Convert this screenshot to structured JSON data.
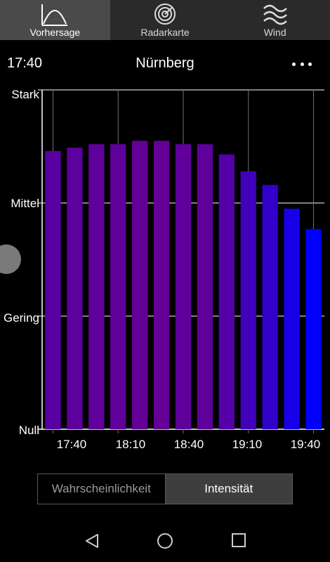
{
  "tabs": [
    {
      "label": "Vorhersage",
      "icon": "curve-icon",
      "active": true
    },
    {
      "label": "Radarkarte",
      "icon": "radar-icon",
      "active": false
    },
    {
      "label": "Wind",
      "icon": "waves-icon",
      "active": false
    }
  ],
  "header": {
    "time": "17:40",
    "city": "Nürnberg"
  },
  "colors": {
    "purple": "#640096",
    "blue": "#0000ff",
    "axis": "#ffffff",
    "grid": "#707070"
  },
  "chart_data": {
    "type": "bar",
    "categories": [
      "17:40",
      "17:50",
      "18:00",
      "18:10",
      "18:20",
      "18:30",
      "18:40",
      "18:50",
      "19:00",
      "19:10",
      "19:20",
      "19:30",
      "19:40"
    ],
    "values": [
      0.82,
      0.83,
      0.84,
      0.84,
      0.85,
      0.85,
      0.84,
      0.84,
      0.81,
      0.76,
      0.72,
      0.65,
      0.59
    ],
    "y_tick_labels": [
      "Null",
      "Gering",
      "Mittel",
      "Stark"
    ],
    "x_tick_labels": [
      "17:40",
      "18:10",
      "18:40",
      "19:10",
      "19:40"
    ],
    "ylim": [
      0,
      1
    ]
  },
  "toggle": {
    "option1": "Wahrscheinlichkeit",
    "option2": "Intensität",
    "selected": "Intensität"
  }
}
